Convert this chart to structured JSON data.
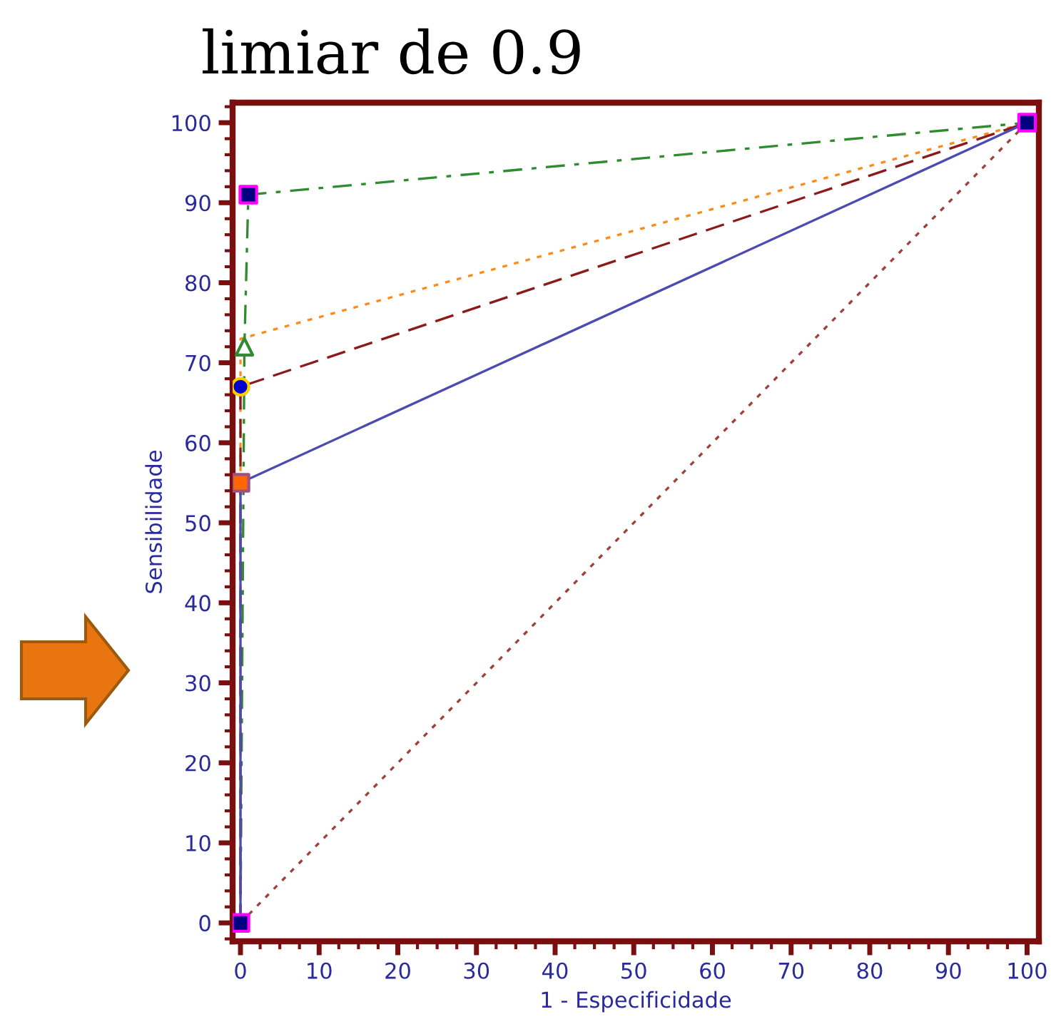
{
  "chart_data": {
    "type": "line",
    "title": "limiar de 0.9",
    "xlabel": "1 - Especificidade",
    "ylabel": "Sensibilidade",
    "xlim": [
      -1,
      101.5
    ],
    "ylim": [
      -2.3,
      102.5
    ],
    "xticks": [
      0,
      10,
      20,
      30,
      40,
      50,
      60,
      70,
      80,
      90,
      100
    ],
    "yticks": [
      0,
      10,
      20,
      30,
      40,
      50,
      60,
      70,
      80,
      90,
      100
    ],
    "grid": false,
    "legend": false,
    "series": [
      {
        "color": "#2e8b2e",
        "line_style": "dashdot",
        "x": [
          0,
          0.5,
          1,
          100
        ],
        "values": [
          0,
          72,
          91,
          100
        ]
      },
      {
        "color": "#ff8c1a",
        "line_style": "dotted",
        "x": [
          0,
          0,
          100
        ],
        "values": [
          0,
          73,
          100
        ]
      },
      {
        "color": "#8b1a1a",
        "line_style": "dashed",
        "x": [
          0,
          0,
          100
        ],
        "values": [
          0,
          67,
          100
        ]
      },
      {
        "color": "#4b4bb0",
        "line_style": "solid",
        "x": [
          0,
          0,
          100
        ],
        "values": [
          0,
          55,
          100
        ]
      },
      {
        "color": "#a0403a",
        "line_style": "dotted",
        "x": [
          0,
          100
        ],
        "values": [
          0,
          100
        ]
      },
      {
        "type": "scatter",
        "color": "#000080",
        "marker": "square",
        "x": [
          0,
          1,
          100
        ],
        "values": [
          0,
          91,
          100
        ]
      },
      {
        "type": "scatter",
        "color": "#ffffff",
        "marker": "triangle",
        "x": [
          0.5
        ],
        "values": [
          72
        ]
      },
      {
        "type": "scatter",
        "color": "#ff6600",
        "marker": "square",
        "x": [
          0
        ],
        "values": [
          55
        ]
      },
      {
        "type": "scatter",
        "color": "#0000cc",
        "marker": "circle",
        "x": [
          0
        ],
        "values": [
          67
        ]
      }
    ]
  }
}
